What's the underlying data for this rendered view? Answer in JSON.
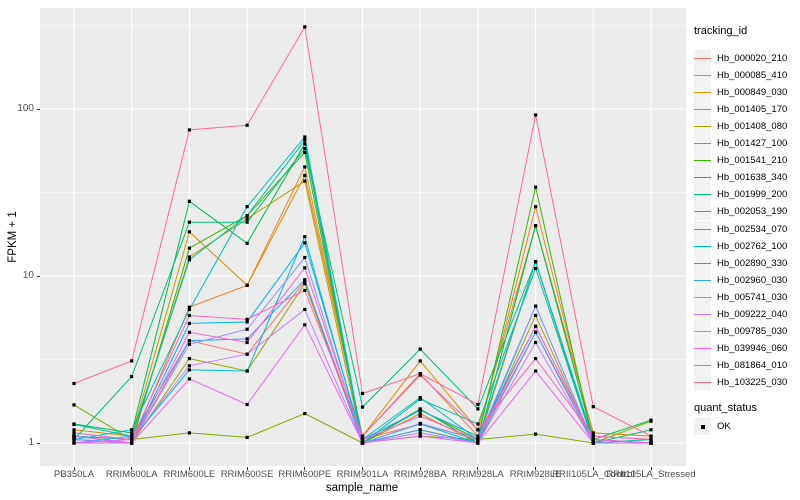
{
  "figure": {
    "y_axis": {
      "title": "FPKM + 1",
      "scale": "log10",
      "tick_labels": [
        "1",
        "10",
        "100"
      ],
      "tick_values": [
        1,
        10,
        100
      ],
      "minor_tick_values": [
        3.1623,
        31.623,
        316.23
      ]
    },
    "x_axis": {
      "title": "sample_name",
      "categories": [
        "PB350LA",
        "RRIM600LA",
        "RRIM600LE",
        "RRIM600SE",
        "RRIM600PE",
        "RRIM901LA",
        "RRIM928BA",
        "RRIM928LA",
        "RRIM928LE",
        "RRII105LA_Control",
        "RRII105LA_Stressed"
      ]
    },
    "legend": {
      "color_title": "tracking_id",
      "shape_title": "quant_status",
      "shape_items": [
        {
          "label": "OK",
          "shape": "filled-square",
          "color": "#000000"
        }
      ]
    },
    "colors": {
      "panel_bg": "#EBEBEB",
      "grid": "#FFFFFF",
      "axis_text": "#4D4D4D",
      "tick_mark": "#333333",
      "point": "#000000",
      "legend_key_bg": "#F2F2F2"
    }
  },
  "chart_data": {
    "type": "line",
    "title": "",
    "xlabel": "sample_name",
    "ylabel": "FPKM + 1",
    "yscale": "log10",
    "ylim": [
      1,
      400
    ],
    "grid": "on",
    "legend_position": "right",
    "point_shape": "filled-square",
    "x": [
      "PB350LA",
      "RRIM600LA",
      "RRIM600LE",
      "RRIM600SE",
      "RRIM600PE",
      "RRIM901LA",
      "RRIM928BA",
      "RRIM928LA",
      "RRIM928LE",
      "RRII105LA_Control",
      "RRII105LA_Stressed"
    ],
    "series": [
      {
        "name": "Hb_000020_210",
        "color": "#F8766D",
        "values": [
          1.1,
          1.0,
          4.1,
          3.4,
          9.3,
          1.05,
          1.3,
          1.05,
          4.6,
          1.05,
          1.0
        ]
      },
      {
        "name": "Hb_000085_410",
        "color": "#EA8331",
        "values": [
          1.05,
          1.0,
          6.5,
          8.8,
          45.0,
          1.1,
          2.6,
          1.1,
          26.0,
          1.1,
          1.05
        ]
      },
      {
        "name": "Hb_000849_030",
        "color": "#D89000",
        "values": [
          1.2,
          1.1,
          18.4,
          8.8,
          40.0,
          1.1,
          3.1,
          1.2,
          20.0,
          1.15,
          1.1
        ]
      },
      {
        "name": "Hb_001405_170",
        "color": "#C09B00",
        "values": [
          1.1,
          1.05,
          13.0,
          22.0,
          37.0,
          1.0,
          1.5,
          1.0,
          12.2,
          1.0,
          1.0
        ]
      },
      {
        "name": "Hb_001408_080",
        "color": "#A3A500",
        "values": [
          1.0,
          1.0,
          3.2,
          2.7,
          9.0,
          1.0,
          1.2,
          1.0,
          5.8,
          1.0,
          1.0
        ]
      },
      {
        "name": "Hb_001427_100",
        "color": "#7CAE00",
        "values": [
          1.69,
          1.05,
          1.15,
          1.08,
          1.5,
          1.0,
          1.1,
          1.05,
          1.13,
          1.0,
          1.35
        ]
      },
      {
        "name": "Hb_001541_210",
        "color": "#39B600",
        "values": [
          1.1,
          1.0,
          14.7,
          23.0,
          55.0,
          1.0,
          1.58,
          1.05,
          34.0,
          1.0,
          1.0
        ]
      },
      {
        "name": "Hb_001638_340",
        "color": "#00BB4E",
        "values": [
          1.3,
          1.15,
          28.0,
          15.7,
          62.0,
          1.0,
          1.6,
          1.0,
          20.0,
          1.05,
          1.37
        ]
      },
      {
        "name": "Hb_001999_200",
        "color": "#00BF7D",
        "values": [
          1.05,
          2.5,
          21.0,
          21.0,
          58.0,
          1.64,
          3.65,
          1.6,
          12.2,
          1.0,
          1.2
        ]
      },
      {
        "name": "Hb_002053_190",
        "color": "#00C1A3",
        "values": [
          1.29,
          1.1,
          12.5,
          23.0,
          65.0,
          1.0,
          1.83,
          1.3,
          11.1,
          1.0,
          1.05
        ]
      },
      {
        "name": "Hb_002534_070",
        "color": "#00BFC4",
        "values": [
          1.05,
          1.2,
          6.3,
          26.0,
          68.0,
          1.05,
          1.87,
          1.05,
          12.2,
          1.05,
          1.0
        ]
      },
      {
        "name": "Hb_002762_100",
        "color": "#00BAE0",
        "values": [
          1.1,
          1.05,
          2.74,
          2.7,
          17.2,
          1.0,
          1.3,
          1.0,
          6.6,
          1.0,
          1.0
        ]
      },
      {
        "name": "Hb_002890_330",
        "color": "#00B0F6",
        "values": [
          1.05,
          1.0,
          5.2,
          5.3,
          15.8,
          1.05,
          1.57,
          1.1,
          5.0,
          1.05,
          1.0
        ]
      },
      {
        "name": "Hb_002960_030",
        "color": "#35A2FF",
        "values": [
          1.0,
          1.1,
          4.1,
          4.2,
          9.5,
          1.0,
          1.2,
          1.0,
          4.6,
          1.0,
          1.0
        ]
      },
      {
        "name": "Hb_005741_030",
        "color": "#9590FF",
        "values": [
          1.05,
          1.0,
          3.9,
          4.8,
          12.9,
          1.0,
          1.31,
          1.05,
          6.6,
          1.0,
          1.0
        ]
      },
      {
        "name": "Hb_009222_040",
        "color": "#C77CFF",
        "values": [
          1.0,
          1.05,
          2.9,
          3.4,
          6.3,
          1.0,
          1.15,
          1.0,
          4.0,
          1.0,
          1.0
        ]
      },
      {
        "name": "Hb_009785_030",
        "color": "#E76BF3",
        "values": [
          1.1,
          1.0,
          2.42,
          1.7,
          5.1,
          1.0,
          1.1,
          1.0,
          2.7,
          1.0,
          1.0
        ]
      },
      {
        "name": "Hb_039946_060",
        "color": "#FA62DB",
        "values": [
          1.0,
          1.0,
          4.6,
          4.0,
          11.2,
          1.05,
          1.45,
          1.05,
          5.0,
          1.05,
          1.0
        ]
      },
      {
        "name": "Hb_081864_010",
        "color": "#FF62BC",
        "values": [
          1.15,
          1.05,
          5.8,
          5.5,
          8.2,
          1.1,
          2.55,
          1.2,
          3.2,
          1.1,
          1.05
        ]
      },
      {
        "name": "Hb_103225_030",
        "color": "#FF6A98",
        "values": [
          2.27,
          3.1,
          75.0,
          80.0,
          310.0,
          1.98,
          2.6,
          1.7,
          92.0,
          1.65,
          1.1
        ]
      }
    ]
  }
}
